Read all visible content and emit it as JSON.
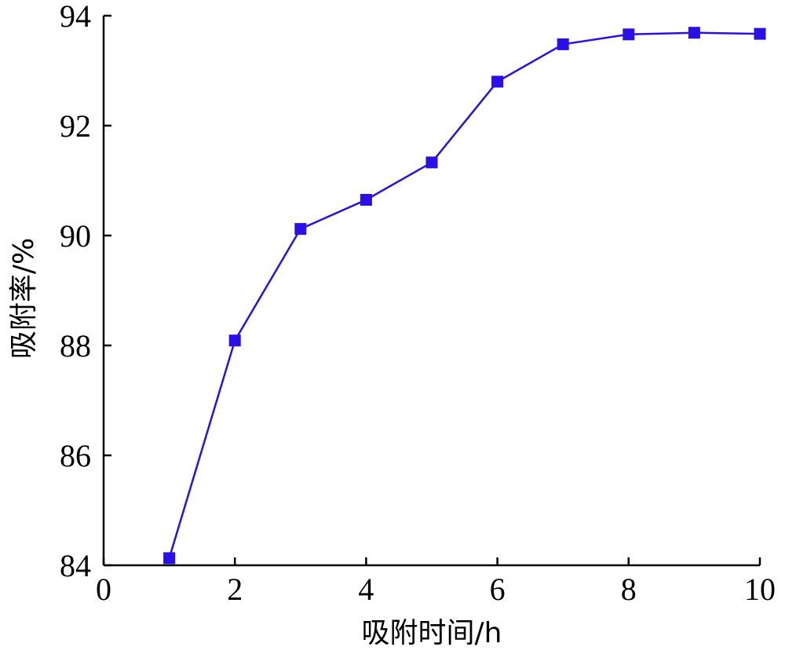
{
  "chart_data": {
    "type": "line",
    "title": "",
    "xlabel": "吸附时间/h",
    "ylabel": "吸附率/%",
    "xlim": [
      0,
      10
    ],
    "ylim": [
      84,
      94
    ],
    "xticks": [
      0,
      2,
      4,
      6,
      8,
      10
    ],
    "yticks": [
      84,
      86,
      88,
      90,
      92,
      94
    ],
    "xtick_labels": [
      "0",
      "2",
      "4",
      "6",
      "8",
      "10"
    ],
    "ytick_labels": [
      "84",
      "86",
      "88",
      "90",
      "92",
      "94"
    ],
    "grid": false,
    "legend": false,
    "marker": "square",
    "color": "#2a10e6",
    "series": [
      {
        "x": [
          1,
          2,
          3,
          4,
          5,
          6,
          7,
          8,
          9,
          10
        ],
        "y": [
          84.13,
          88.09,
          90.12,
          90.65,
          91.33,
          92.8,
          93.48,
          93.66,
          93.69,
          93.67
        ]
      }
    ]
  }
}
